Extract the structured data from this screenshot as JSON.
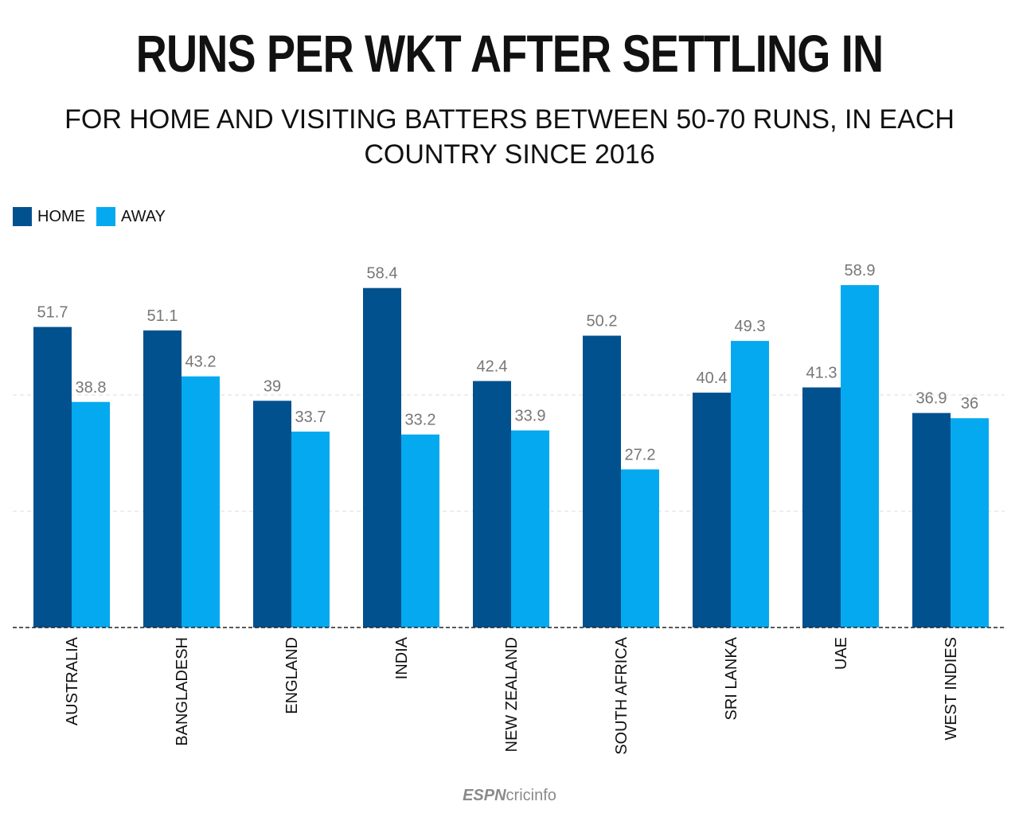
{
  "chart_data": {
    "type": "bar",
    "title": "RUNS PER WKT AFTER SETTLING IN",
    "subtitle": "FOR HOME AND VISITING BATTERS BETWEEN 50-70 RUNS, IN EACH COUNTRY SINCE 2016",
    "categories": [
      "AUSTRALIA",
      "BANGLADESH",
      "ENGLAND",
      "INDIA",
      "NEW ZEALAND",
      "SOUTH AFRICA",
      "SRI LANKA",
      "UAE",
      "WEST INDIES"
    ],
    "series": [
      {
        "name": "HOME",
        "color": "#02518f",
        "values": [
          51.7,
          51.1,
          39,
          58.4,
          42.4,
          50.2,
          40.4,
          41.3,
          36.9
        ]
      },
      {
        "name": "AWAY",
        "color": "#05a9f0",
        "values": [
          38.8,
          43.2,
          33.7,
          33.2,
          33.9,
          27.2,
          49.3,
          58.9,
          36
        ]
      }
    ],
    "value_labels": [
      [
        "51.7",
        "51.1",
        "39",
        "58.4",
        "42.4",
        "50.2",
        "40.4",
        "41.3",
        "36.9"
      ],
      [
        "38.8",
        "43.2",
        "33.7",
        "33.2",
        "33.9",
        "27.2",
        "49.3",
        "58.9",
        "36"
      ]
    ],
    "ylim": [
      0,
      60
    ],
    "gridlines": [
      20,
      40
    ],
    "legend_position": "top-left",
    "grid": true
  },
  "footer": {
    "brand": "ESPNcricinfo"
  }
}
